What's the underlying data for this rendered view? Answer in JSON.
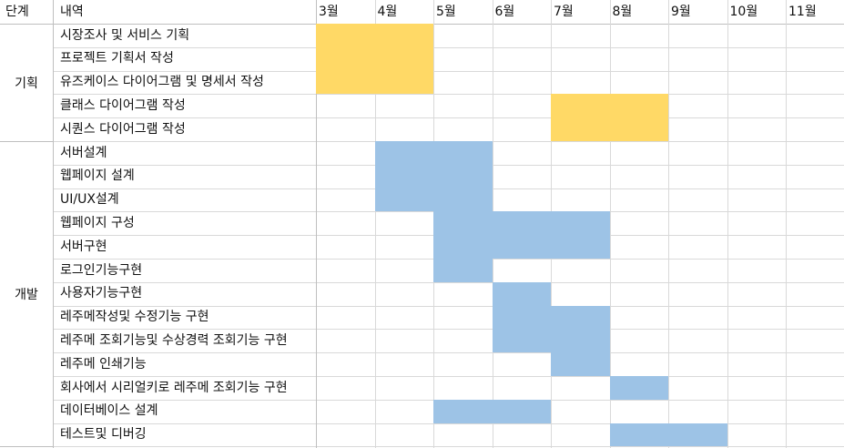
{
  "headers": {
    "phase": "단계",
    "task": "내역",
    "months": [
      "3월",
      "4월",
      "5월",
      "6월",
      "7월",
      "8월",
      "9월",
      "10월",
      "11월"
    ]
  },
  "phases": [
    {
      "label": "기획",
      "first_row": 0,
      "last_row": 4
    },
    {
      "label": "개발",
      "first_row": 5,
      "last_row": 17
    }
  ],
  "colors": {
    "planning": "#FFD966",
    "development": "#9DC3E6",
    "grid": "#D9D9D9"
  },
  "tasks": [
    {
      "label": "시장조사 및 서비스 기획",
      "color": "planning",
      "start": 0,
      "end": 1
    },
    {
      "label": "프로젝트 기획서 작성",
      "color": "planning",
      "start": 0,
      "end": 1
    },
    {
      "label": "유즈케이스 다이어그램 및 명세서 작성",
      "color": "planning",
      "start": 0,
      "end": 1
    },
    {
      "label": "클래스 다이어그램 작성",
      "color": "planning",
      "start": 4,
      "end": 5
    },
    {
      "label": "시퀀스 다이어그램  작성",
      "color": "planning",
      "start": 4,
      "end": 5
    },
    {
      "label": "서버설계",
      "color": "development",
      "start": 1,
      "end": 2
    },
    {
      "label": "웹페이지 설계",
      "color": "development",
      "start": 1,
      "end": 2
    },
    {
      "label": "UI/UX설계",
      "color": "development",
      "start": 1,
      "end": 2
    },
    {
      "label": "웹페이지 구성",
      "color": "development",
      "start": 2,
      "end": 4
    },
    {
      "label": "서버구현",
      "color": "development",
      "start": 2,
      "end": 4
    },
    {
      "label": "로그인기능구현",
      "color": "development",
      "start": 2,
      "end": 2
    },
    {
      "label": "사용자기능구현",
      "color": "development",
      "start": 3,
      "end": 3
    },
    {
      "label": "레주메작성및 수정기능 구현",
      "color": "development",
      "start": 3,
      "end": 4
    },
    {
      "label": "레주메 조회기능및 수상경력 조회기능 구현",
      "color": "development",
      "start": 3,
      "end": 4
    },
    {
      "label": "레주메 인쇄기능",
      "color": "development",
      "start": 4,
      "end": 4
    },
    {
      "label": "회사에서 시리얼키로 레주메 조회기능 구현",
      "color": "development",
      "start": 5,
      "end": 5
    },
    {
      "label": "데이터베이스 설계",
      "color": "development",
      "start": 2,
      "end": 3
    },
    {
      "label": "테스트및 디버깅",
      "color": "development",
      "start": 5,
      "end": 6
    }
  ]
}
